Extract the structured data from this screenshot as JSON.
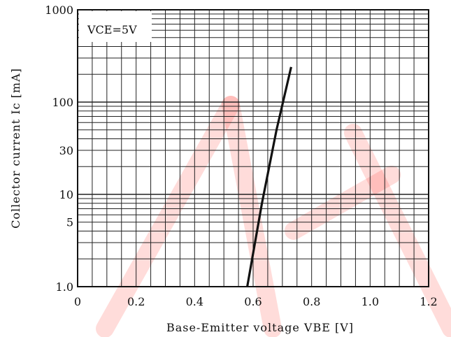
{
  "chart_data": {
    "type": "line",
    "title": "",
    "xlabel": "Base-Emitter voltage VBE [V]",
    "ylabel": "Collector current Ic [mA]",
    "annotation": {
      "main": "VCE",
      "sub": "=5V"
    },
    "xlim": [
      0,
      1.2
    ],
    "ylim": [
      1,
      1000
    ],
    "yscale": "log",
    "xticks": [
      0,
      0.2,
      0.4,
      0.6,
      0.8,
      1.0,
      1.2
    ],
    "xtick_labels": [
      "0",
      "0.2",
      "0.4",
      "0.6",
      "0.8",
      "1.0",
      "1.2"
    ],
    "yticks": [
      1,
      5,
      10,
      30,
      100,
      1000
    ],
    "ytick_labels": [
      "1.0",
      "5",
      "10",
      "30",
      "100",
      "1000"
    ],
    "grid": true,
    "series": [
      {
        "x": [
          0.58,
          0.63,
          0.68,
          0.73
        ],
        "y": [
          1,
          8,
          50,
          240
        ]
      }
    ],
    "line_color": "#111111",
    "watermark_color": "#ff2a1f"
  }
}
